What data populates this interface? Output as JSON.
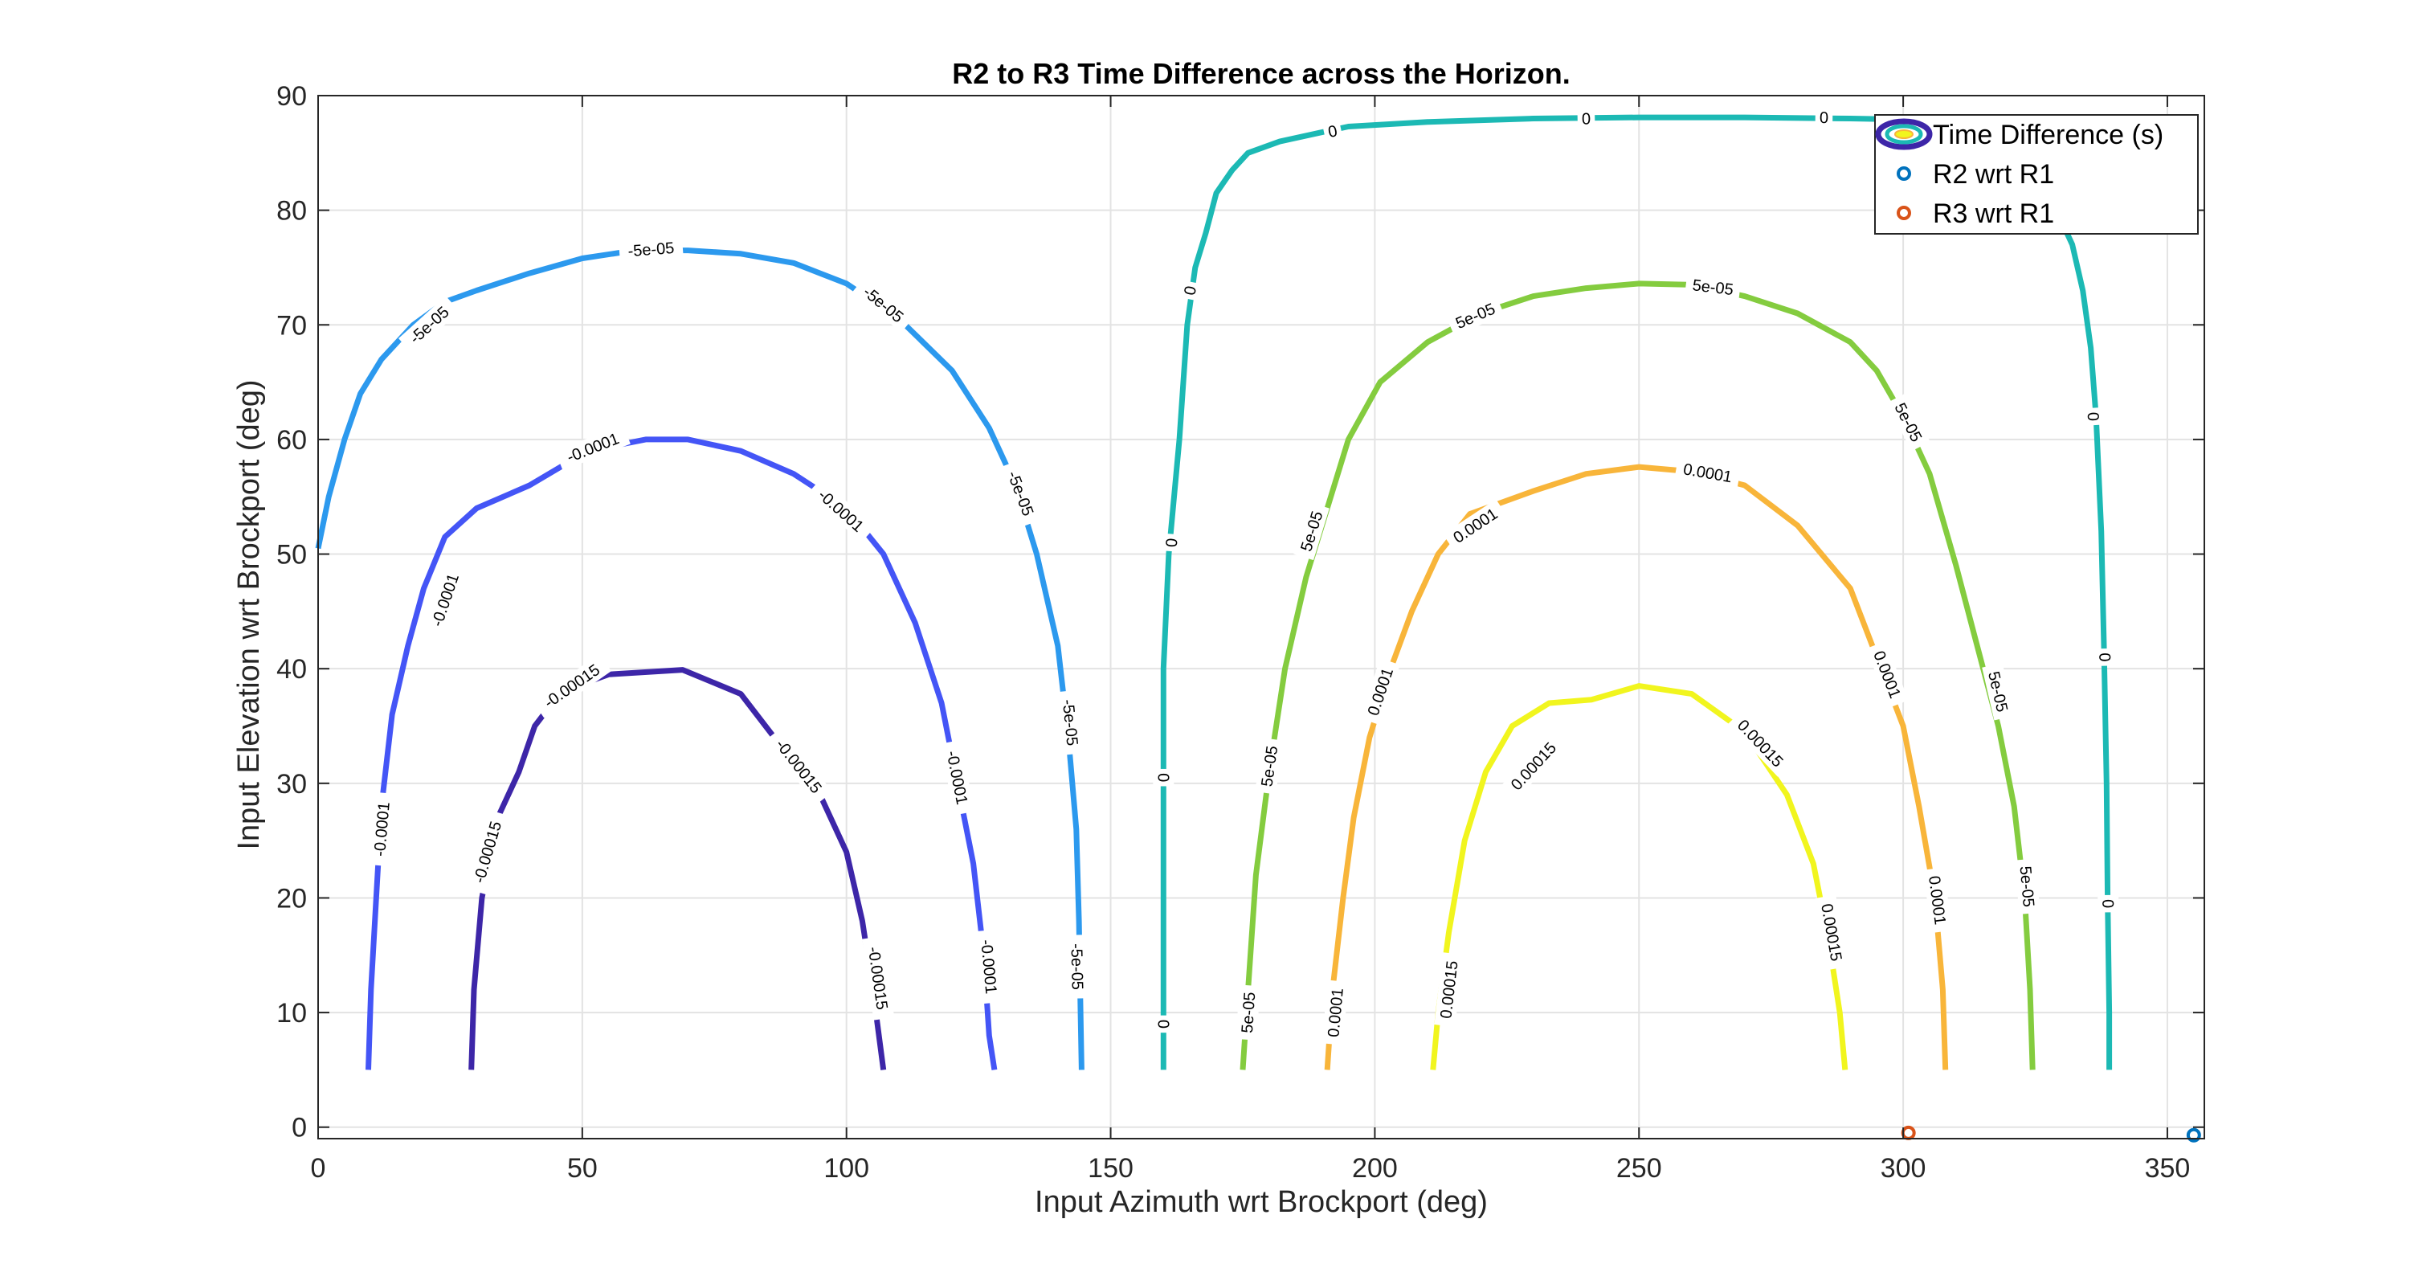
{
  "chart_data": {
    "type": "contour",
    "title": "R2 to R3 Time Difference across the Horizon.",
    "xlabel": "Input Azimuth wrt Brockport (deg)",
    "ylabel": "Input Elevation wrt Brockport (deg)",
    "xlim": [
      0,
      357
    ],
    "ylim": [
      -1,
      90
    ],
    "xticks": [
      0,
      50,
      100,
      150,
      200,
      250,
      300,
      350
    ],
    "yticks": [
      0,
      10,
      20,
      30,
      40,
      50,
      60,
      70,
      80,
      90
    ],
    "grid": true,
    "legend": {
      "position": "top-right",
      "entries": [
        {
          "label": "Time Difference (s)",
          "kind": "contour"
        },
        {
          "label": "R2 wrt R1",
          "kind": "marker",
          "color": "#0072BD"
        },
        {
          "label": "R3 wrt R1",
          "kind": "marker",
          "color": "#D95319"
        }
      ]
    },
    "contours": [
      {
        "level": -0.00015,
        "label": "-0.00015",
        "color": "#3d26a8",
        "points": [
          [
            29,
            5
          ],
          [
            29.5,
            12
          ],
          [
            31,
            20
          ],
          [
            34,
            27
          ],
          [
            38,
            31
          ],
          [
            41,
            35
          ],
          [
            46,
            38
          ],
          [
            55,
            39.5
          ],
          [
            69,
            39.9
          ],
          [
            80,
            37.8
          ],
          [
            88,
            33
          ],
          [
            95,
            29
          ],
          [
            100,
            24
          ],
          [
            103,
            18
          ],
          [
            105,
            12
          ],
          [
            107,
            5
          ]
        ],
        "labels": [
          [
            32,
            24
          ],
          [
            48,
            38.5
          ],
          [
            91,
            31.5
          ],
          [
            106,
            13
          ]
        ]
      },
      {
        "level": -0.0001,
        "label": "-0.0001",
        "color": "#4455f6",
        "points": [
          [
            9.5,
            5
          ],
          [
            10,
            12
          ],
          [
            11,
            20
          ],
          [
            12,
            28
          ],
          [
            14,
            36
          ],
          [
            17,
            42
          ],
          [
            20,
            47
          ],
          [
            24,
            51.5
          ],
          [
            30,
            54
          ],
          [
            40,
            56
          ],
          [
            51,
            59
          ],
          [
            62,
            60
          ],
          [
            70,
            60
          ],
          [
            80,
            59
          ],
          [
            90,
            57
          ],
          [
            100,
            54
          ],
          [
            107,
            50
          ],
          [
            113,
            44
          ],
          [
            118,
            37
          ],
          [
            121,
            30
          ],
          [
            124,
            23
          ],
          [
            126,
            15
          ],
          [
            127,
            8
          ],
          [
            128,
            5
          ]
        ],
        "labels": [
          [
            12,
            26
          ],
          [
            24,
            46
          ],
          [
            52,
            59.3
          ],
          [
            99,
            53.8
          ],
          [
            121,
            30.5
          ],
          [
            127,
            14
          ]
        ]
      },
      {
        "level": -5e-05,
        "label": "-5e-05",
        "color": "#2c99ee",
        "points": [
          [
            0,
            50.5
          ],
          [
            2,
            55
          ],
          [
            5,
            60
          ],
          [
            8,
            64
          ],
          [
            12,
            67
          ],
          [
            18,
            70
          ],
          [
            24,
            72
          ],
          [
            30,
            73
          ],
          [
            40,
            74.5
          ],
          [
            50,
            75.8
          ],
          [
            60,
            76.5
          ],
          [
            70,
            76.5
          ],
          [
            80,
            76.2
          ],
          [
            90,
            75.4
          ],
          [
            100,
            73.6
          ],
          [
            110,
            70.5
          ],
          [
            120,
            66
          ],
          [
            127,
            61
          ],
          [
            132,
            56
          ],
          [
            136,
            50
          ],
          [
            140,
            42
          ],
          [
            142,
            34
          ],
          [
            143.5,
            26
          ],
          [
            144,
            18
          ],
          [
            144.3,
            10
          ],
          [
            144.5,
            5
          ]
        ],
        "labels": [
          [
            21,
            70
          ],
          [
            63,
            76.6
          ],
          [
            107,
            71.8
          ],
          [
            133,
            55.3
          ],
          [
            142.4,
            35.3
          ],
          [
            143.7,
            14
          ]
        ]
      },
      {
        "level": 0,
        "label": "0",
        "color": "#1cb9b4",
        "points": [
          [
            160,
            5
          ],
          [
            160,
            10
          ],
          [
            160,
            20
          ],
          [
            160,
            30
          ],
          [
            160,
            40
          ],
          [
            161,
            50
          ],
          [
            163,
            60
          ],
          [
            164.5,
            70
          ],
          [
            166,
            75
          ],
          [
            168,
            78
          ],
          [
            170,
            81.5
          ],
          [
            173,
            83.5
          ],
          [
            176,
            85
          ],
          [
            182,
            86
          ],
          [
            190,
            86.8
          ],
          [
            195,
            87.3
          ],
          [
            210,
            87.7
          ],
          [
            230,
            88
          ],
          [
            250,
            88.1
          ],
          [
            270,
            88.1
          ],
          [
            290,
            88
          ],
          [
            315,
            87.8
          ],
          [
            320,
            85
          ],
          [
            325,
            82
          ],
          [
            329,
            80
          ],
          [
            332,
            77
          ],
          [
            334,
            73
          ],
          [
            335.5,
            68
          ],
          [
            336.5,
            62
          ],
          [
            337.5,
            52
          ],
          [
            338,
            42
          ],
          [
            338.5,
            30
          ],
          [
            338.7,
            20
          ],
          [
            339,
            10
          ],
          [
            339,
            5
          ]
        ],
        "labels": [
          [
            160,
            9
          ],
          [
            160,
            30.5
          ],
          [
            161.5,
            51
          ],
          [
            165,
            73
          ],
          [
            192,
            86.9
          ],
          [
            240,
            88
          ],
          [
            285,
            88.1
          ],
          [
            336,
            62
          ],
          [
            338.2,
            41
          ],
          [
            338.8,
            19.5
          ]
        ]
      },
      {
        "level": 5e-05,
        "label": "5e-05",
        "color": "#84cc3f",
        "points": [
          [
            175,
            5
          ],
          [
            176,
            12
          ],
          [
            177.5,
            22
          ],
          [
            180,
            31
          ],
          [
            183,
            40
          ],
          [
            187,
            48
          ],
          [
            191,
            54
          ],
          [
            195,
            60
          ],
          [
            201,
            65
          ],
          [
            210,
            68.5
          ],
          [
            220,
            71
          ],
          [
            230,
            72.5
          ],
          [
            240,
            73.2
          ],
          [
            250,
            73.6
          ],
          [
            260,
            73.5
          ],
          [
            270,
            72.5
          ],
          [
            280,
            71
          ],
          [
            290,
            68.5
          ],
          [
            295,
            66
          ],
          [
            300,
            62
          ],
          [
            305,
            57
          ],
          [
            310,
            49
          ],
          [
            314,
            42
          ],
          [
            318,
            35
          ],
          [
            321,
            28
          ],
          [
            323,
            20
          ],
          [
            324,
            12
          ],
          [
            324.5,
            5
          ]
        ],
        "labels": [
          [
            176,
            10
          ],
          [
            180,
            31.5
          ],
          [
            188,
            52
          ],
          [
            219,
            70.8
          ],
          [
            264,
            73.3
          ],
          [
            301,
            61.5
          ],
          [
            318,
            38
          ],
          [
            323.5,
            21
          ]
        ]
      },
      {
        "level": 0.0001,
        "label": "0.0001",
        "color": "#f8b53a",
        "points": [
          [
            191,
            5
          ],
          [
            192,
            12
          ],
          [
            194,
            20
          ],
          [
            196,
            27
          ],
          [
            199,
            34
          ],
          [
            203,
            40
          ],
          [
            207,
            45
          ],
          [
            212,
            50
          ],
          [
            218,
            53.5
          ],
          [
            230,
            55.5
          ],
          [
            240,
            57
          ],
          [
            250,
            57.6
          ],
          [
            260,
            57.2
          ],
          [
            270,
            56
          ],
          [
            280,
            52.5
          ],
          [
            290,
            47
          ],
          [
            295,
            41
          ],
          [
            300,
            35
          ],
          [
            303,
            28
          ],
          [
            306,
            20
          ],
          [
            307.5,
            12
          ],
          [
            308,
            5
          ]
        ],
        "labels": [
          [
            192.5,
            10
          ],
          [
            201,
            38
          ],
          [
            219,
            52.5
          ],
          [
            263,
            57.1
          ],
          [
            297,
            39.5
          ],
          [
            306.5,
            19.8
          ]
        ]
      },
      {
        "level": 0.00015,
        "label": "0.00015",
        "color": "#f1f51e",
        "points": [
          [
            211,
            5
          ],
          [
            212,
            10
          ],
          [
            214,
            17
          ],
          [
            217,
            25
          ],
          [
            221,
            31
          ],
          [
            226,
            35
          ],
          [
            233,
            37
          ],
          [
            241,
            37.3
          ],
          [
            250,
            38.5
          ],
          [
            260,
            37.8
          ],
          [
            270,
            34.5
          ],
          [
            278,
            29
          ],
          [
            283,
            23
          ],
          [
            286,
            16
          ],
          [
            288,
            10
          ],
          [
            289,
            5
          ]
        ],
        "labels": [
          [
            214,
            12
          ],
          [
            230,
            31.5
          ],
          [
            273,
            33.5
          ],
          [
            286.5,
            17
          ]
        ]
      }
    ],
    "markers": [
      {
        "series": "R2 wrt R1",
        "x": 355,
        "y": -0.7,
        "color": "#0072BD"
      },
      {
        "series": "R3 wrt R1",
        "x": 301,
        "y": -0.5,
        "color": "#D95319"
      }
    ]
  }
}
